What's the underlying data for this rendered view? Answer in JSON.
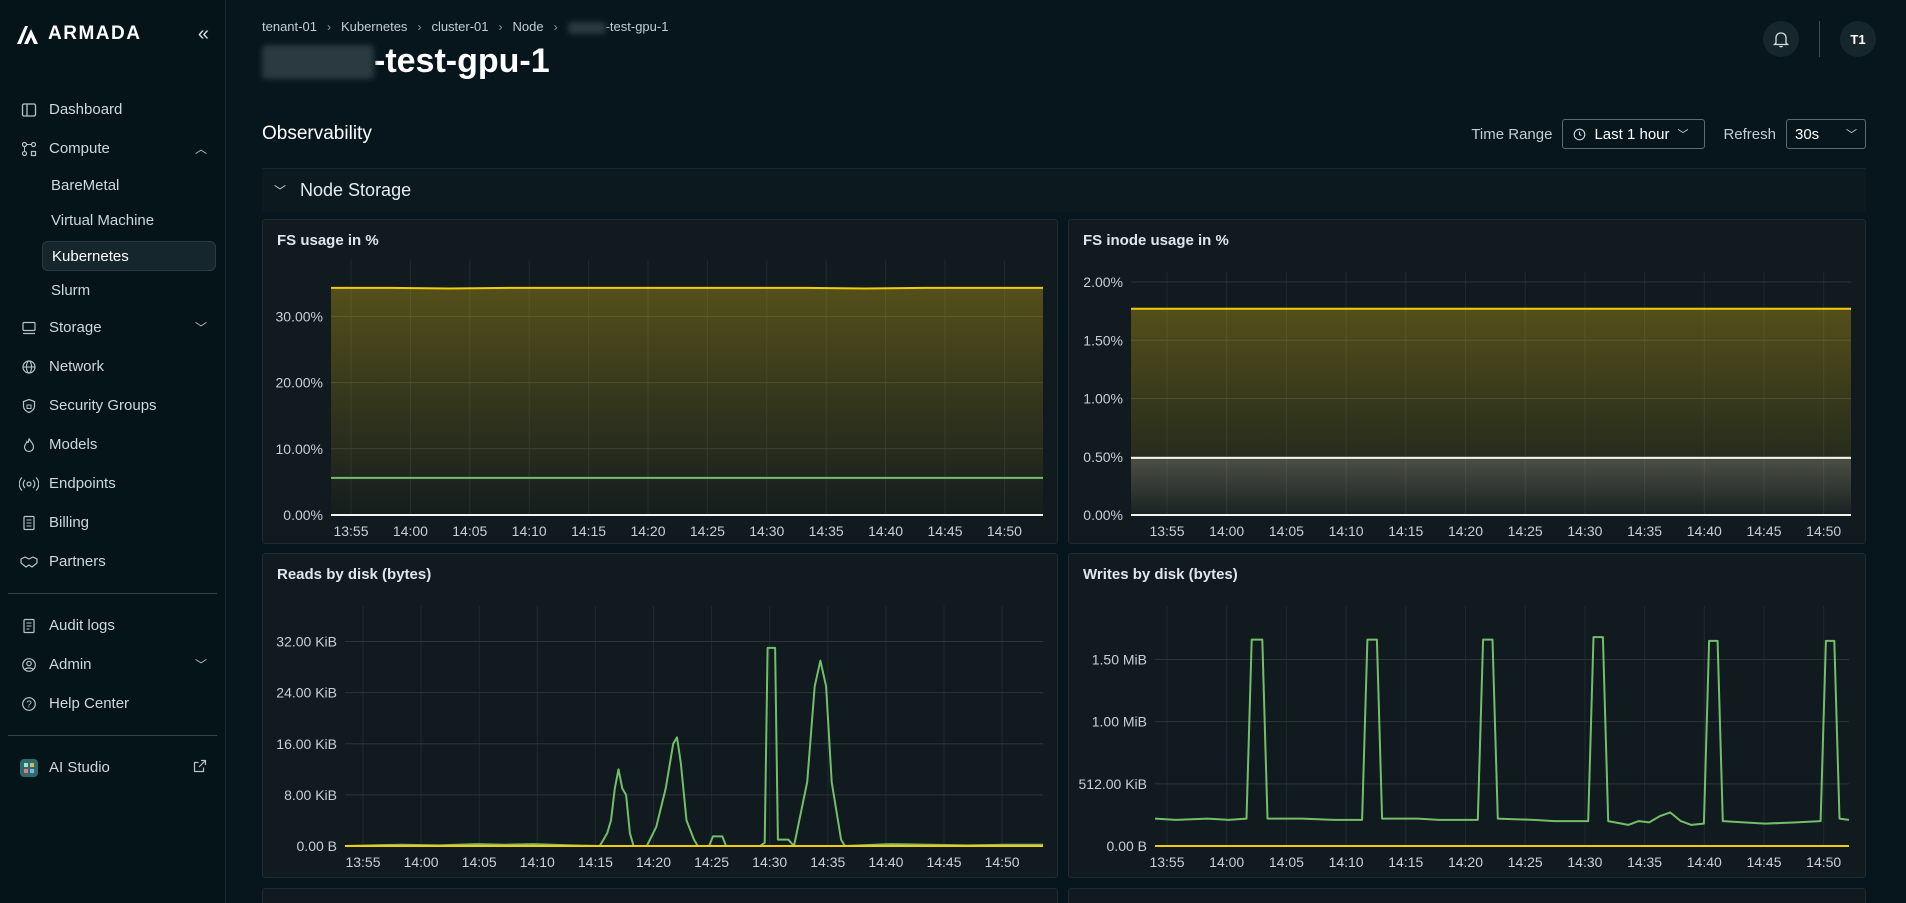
{
  "app": {
    "brand": "ARMADA"
  },
  "sidebar": {
    "items": [
      {
        "label": "Dashboard",
        "icon": "dashboard-icon"
      },
      {
        "label": "Compute",
        "icon": "compute-icon",
        "expanded": true,
        "children": [
          "BareMetal",
          "Virtual Machine",
          "Kubernetes",
          "Slurm"
        ],
        "active_child": "Kubernetes"
      },
      {
        "label": "Storage",
        "icon": "storage-icon",
        "expanded": false
      },
      {
        "label": "Network",
        "icon": "globe-icon"
      },
      {
        "label": "Security Groups",
        "icon": "shield-icon"
      },
      {
        "label": "Models",
        "icon": "flame-icon"
      },
      {
        "label": "Endpoints",
        "icon": "broadcast-icon"
      },
      {
        "label": "Billing",
        "icon": "receipt-icon"
      },
      {
        "label": "Partners",
        "icon": "handshake-icon"
      }
    ],
    "bottom": [
      {
        "label": "Audit logs",
        "icon": "document-icon"
      },
      {
        "label": "Admin",
        "icon": "user-gear-icon"
      },
      {
        "label": "Help Center",
        "icon": "help-icon"
      }
    ],
    "studio": {
      "label": "AI Studio",
      "icon": "ai-studio-icon"
    }
  },
  "header": {
    "breadcrumb": [
      "tenant-01",
      "Kubernetes",
      "cluster-01",
      "Node",
      "-test-gpu-1"
    ],
    "title_suffix": "-test-gpu-1",
    "avatar": "T1"
  },
  "observability": {
    "title": "Observability",
    "time_range_label": "Time Range",
    "time_range_value": "Last 1 hour",
    "refresh_label": "Refresh",
    "refresh_value": "30s"
  },
  "section": {
    "title": "Node Storage"
  },
  "colors": {
    "yellow": "#f2cc0c",
    "green": "#73bf69",
    "white": "#f4f4ee",
    "panel": "#101a1f",
    "grid": "#2a3439"
  },
  "x_ticks": [
    "13:55",
    "14:00",
    "14:05",
    "14:10",
    "14:15",
    "14:20",
    "14:25",
    "14:30",
    "14:35",
    "14:40",
    "14:45",
    "14:50"
  ],
  "chart_data": [
    {
      "type": "area",
      "title": "FS usage in %",
      "y_ticks": [
        "0.00%",
        "10.00%",
        "20.00%",
        "30.00%"
      ],
      "ylim": [
        0,
        37
      ],
      "series": [
        {
          "color": "yellow",
          "values": [
            34.3,
            34.3,
            34.2,
            34.3,
            34.3,
            34.3,
            34.3,
            34.3,
            34.3,
            34.2,
            34.3,
            34.3,
            34.3
          ],
          "fill": true
        },
        {
          "color": "green",
          "values": [
            5.6,
            5.6,
            5.6,
            5.6,
            5.6,
            5.6,
            5.6,
            5.6,
            5.6,
            5.6,
            5.6,
            5.6,
            5.6
          ]
        },
        {
          "color": "white",
          "values": [
            0,
            0,
            0,
            0,
            0,
            0,
            0,
            0,
            0,
            0,
            0,
            0,
            0
          ]
        }
      ]
    },
    {
      "type": "area",
      "title": "FS inode usage in %",
      "y_ticks": [
        "0.00%",
        "0.50%",
        "1.00%",
        "1.50%",
        "2.00%"
      ],
      "ylim": [
        0,
        2.0
      ],
      "series": [
        {
          "color": "yellow",
          "values": [
            1.77,
            1.77,
            1.77,
            1.77,
            1.77,
            1.77,
            1.77,
            1.77,
            1.77,
            1.77,
            1.77,
            1.77,
            1.77
          ],
          "fill": true
        },
        {
          "color": "white",
          "values": [
            0.49,
            0.49,
            0.49,
            0.49,
            0.49,
            0.49,
            0.49,
            0.49,
            0.49,
            0.49,
            0.49,
            0.49,
            0.49
          ],
          "fill": true
        },
        {
          "color": "white",
          "values": [
            0,
            0,
            0,
            0,
            0,
            0,
            0,
            0,
            0,
            0,
            0,
            0,
            0
          ]
        }
      ]
    },
    {
      "type": "line",
      "title": "Reads by disk (bytes)",
      "y_ticks": [
        "0.00 B",
        "8.00 KiB",
        "16.00 KiB",
        "24.00 KiB",
        "32.00 KiB"
      ],
      "ylim": [
        0,
        36
      ],
      "series": [
        {
          "color": "green",
          "points": [
            [
              0,
              0
            ],
            [
              6,
              0.2
            ],
            [
              10,
              0.1
            ],
            [
              14,
              0.3
            ],
            [
              17,
              0.2
            ],
            [
              20,
              0.3
            ],
            [
              24,
              0.1
            ],
            [
              27,
              0
            ],
            [
              27.8,
              2
            ],
            [
              28.2,
              4
            ],
            [
              28.6,
              9
            ],
            [
              29,
              12
            ],
            [
              29.4,
              9
            ],
            [
              29.8,
              8
            ],
            [
              30.2,
              2
            ],
            [
              30.6,
              0
            ],
            [
              32,
              0
            ],
            [
              33,
              3
            ],
            [
              34,
              9
            ],
            [
              34.8,
              16
            ],
            [
              35.2,
              17
            ],
            [
              35.6,
              13
            ],
            [
              36.2,
              4
            ],
            [
              37,
              1
            ],
            [
              37.4,
              0
            ],
            [
              38.6,
              0
            ],
            [
              39,
              1.5
            ],
            [
              40,
              1.5
            ],
            [
              40.4,
              0
            ],
            [
              44,
              0
            ],
            [
              44.5,
              0.5
            ],
            [
              44.8,
              31
            ],
            [
              45.6,
              31
            ],
            [
              45.9,
              1
            ],
            [
              47,
              1
            ],
            [
              47.6,
              0
            ],
            [
              49,
              10
            ],
            [
              49.8,
              25
            ],
            [
              50.4,
              29
            ],
            [
              51,
              25
            ],
            [
              51.6,
              10
            ],
            [
              52.6,
              1
            ],
            [
              53,
              0
            ],
            [
              58,
              0.3
            ],
            [
              62,
              0.2
            ],
            [
              66,
              0.1
            ],
            [
              70,
              0.2
            ],
            [
              74,
              0.2
            ]
          ]
        },
        {
          "color": "yellow",
          "points": [
            [
              0,
              0
            ],
            [
              74,
              0
            ]
          ]
        }
      ]
    },
    {
      "type": "line",
      "title": "Writes by disk (bytes)",
      "y_ticks": [
        "0.00 B",
        "512.00 KiB",
        "1.00 MiB",
        "1.50 MiB"
      ],
      "ylim": [
        0,
        1.85
      ],
      "series": [
        {
          "color": "green",
          "points": [
            [
              0,
              0.22
            ],
            [
              2,
              0.21
            ],
            [
              5,
              0.22
            ],
            [
              7,
              0.21
            ],
            [
              8.7,
              0.22
            ],
            [
              9.2,
              1.66
            ],
            [
              10.2,
              1.66
            ],
            [
              10.7,
              0.22
            ],
            [
              14,
              0.22
            ],
            [
              17,
              0.21
            ],
            [
              19.7,
              0.21
            ],
            [
              20.2,
              1.66
            ],
            [
              21.1,
              1.66
            ],
            [
              21.6,
              0.22
            ],
            [
              25,
              0.22
            ],
            [
              27,
              0.21
            ],
            [
              30.7,
              0.21
            ],
            [
              31.2,
              1.66
            ],
            [
              32.1,
              1.66
            ],
            [
              32.6,
              0.22
            ],
            [
              36,
              0.21
            ],
            [
              38,
              0.2
            ],
            [
              41.2,
              0.2
            ],
            [
              41.7,
              1.68
            ],
            [
              42.6,
              1.68
            ],
            [
              43.1,
              0.2
            ],
            [
              45,
              0.17
            ],
            [
              46,
              0.2
            ],
            [
              47,
              0.19
            ],
            [
              48,
              0.24
            ],
            [
              49,
              0.27
            ],
            [
              50,
              0.2
            ],
            [
              51,
              0.17
            ],
            [
              52.2,
              0.18
            ],
            [
              52.7,
              1.65
            ],
            [
              53.5,
              1.65
            ],
            [
              54,
              0.2
            ],
            [
              58,
              0.18
            ],
            [
              61,
              0.19
            ],
            [
              63.3,
              0.2
            ],
            [
              63.8,
              1.65
            ],
            [
              64.6,
              1.65
            ],
            [
              65.1,
              0.22
            ],
            [
              66,
              0.21
            ]
          ]
        },
        {
          "color": "yellow",
          "points": [
            [
              0,
              0
            ],
            [
              66,
              0
            ]
          ]
        }
      ]
    }
  ]
}
